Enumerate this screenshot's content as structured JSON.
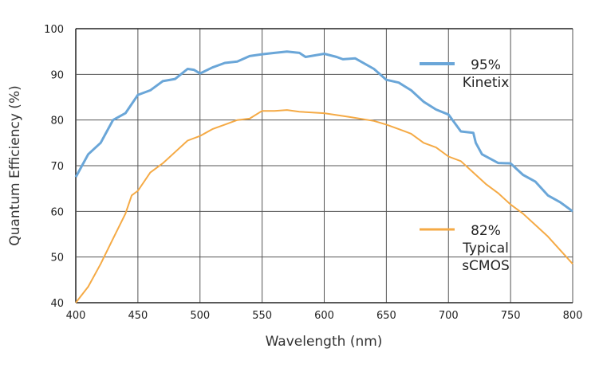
{
  "chart_data": {
    "type": "line",
    "title": "",
    "xlabel": "Wavelength (nm)",
    "ylabel": "Quantum Efficiency (%)",
    "xlim": [
      400,
      800
    ],
    "ylim": [
      40,
      100
    ],
    "xticks": [
      "400",
      "450",
      "500",
      "550",
      "600",
      "650",
      "700",
      "750",
      "800"
    ],
    "yticks": [
      "40",
      "50",
      "60",
      "70",
      "80",
      "90",
      "100"
    ],
    "grid": true,
    "legend_placement": "right",
    "series": [
      {
        "name": "Kinetix",
        "legend_value": "95%",
        "legend_label": [
          "Kinetix"
        ],
        "color": "#6aa6d8",
        "x": [
          400,
          405,
          410,
          420,
          430,
          440,
          450,
          460,
          470,
          480,
          490,
          495,
          500,
          510,
          520,
          530,
          540,
          550,
          560,
          570,
          580,
          585,
          600,
          610,
          615,
          625,
          640,
          650,
          660,
          670,
          680,
          690,
          700,
          710,
          720,
          722,
          727,
          740,
          750,
          760,
          770,
          780,
          790,
          800
        ],
        "y": [
          67.5,
          70,
          72.5,
          75,
          80,
          81.5,
          85.5,
          86.5,
          88.5,
          89,
          91.2,
          91,
          90.2,
          91.5,
          92.5,
          92.8,
          94,
          94.4,
          94.7,
          95,
          94.7,
          93.8,
          94.5,
          93.8,
          93.3,
          93.5,
          91.2,
          88.8,
          88.2,
          86.5,
          84,
          82.3,
          81.2,
          77.5,
          77.2,
          75,
          72.5,
          70.6,
          70.5,
          68,
          66.5,
          63.5,
          62,
          60
        ]
      },
      {
        "name": "Typical sCMOS",
        "legend_value": "82%",
        "legend_label": [
          "Typical",
          "sCMOS"
        ],
        "color": "#f5aa45",
        "x": [
          400,
          410,
          420,
          430,
          440,
          445,
          450,
          460,
          470,
          480,
          490,
          500,
          510,
          520,
          530,
          540,
          550,
          560,
          570,
          580,
          600,
          620,
          640,
          650,
          660,
          670,
          680,
          690,
          700,
          710,
          720,
          730,
          740,
          750,
          760,
          770,
          780,
          790,
          800
        ],
        "y": [
          40,
          43.5,
          48.5,
          54,
          59.5,
          63.5,
          64.5,
          68.5,
          70.5,
          73,
          75.5,
          76.5,
          78,
          79,
          80,
          80.3,
          82,
          82,
          82.2,
          81.8,
          81.5,
          80.7,
          79.8,
          79,
          78,
          77,
          75,
          74,
          72,
          71,
          68.5,
          66,
          64,
          61.5,
          59.5,
          57,
          54.5,
          51.5,
          48.5
        ]
      }
    ]
  }
}
